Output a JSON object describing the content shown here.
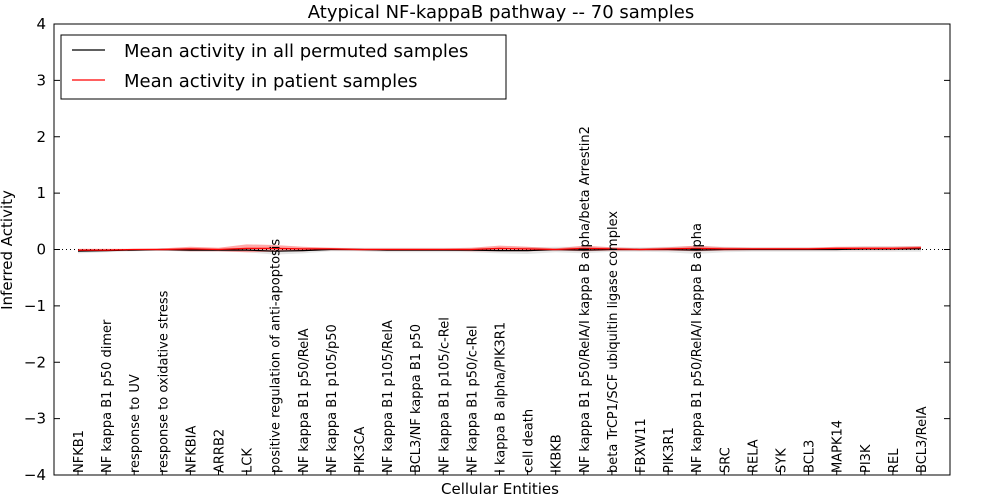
{
  "chart_data": {
    "type": "line",
    "title": "Atypical NF-kappaB pathway -- 70 samples",
    "xlabel": "Cellular Entities",
    "ylabel": "Inferred Activity",
    "ylim": [
      -4,
      4
    ],
    "yticks": [
      -4,
      -3,
      -2,
      -1,
      0,
      1,
      2,
      3,
      4
    ],
    "ytick_labels": [
      "−4",
      "−3",
      "−2",
      "−1",
      "0",
      "1",
      "2",
      "3",
      "4"
    ],
    "grid": false,
    "legend_position": "top-left",
    "categories": [
      "NFKB1",
      "NF kappa B1 p50 dimer",
      "response to UV",
      "response to oxidative stress",
      "NFKBIA",
      "ARRB2",
      "LCK",
      "positive regulation of anti-apoptosis",
      "NF kappa B1 p50/RelA",
      "NF kappa B1 p105/p50",
      "PIK3CA",
      "NF kappa B1 p105/RelA",
      "BCL3/NF kappa B1 p50",
      "NF kappa B1 p105/c-Rel",
      "NF kappa B1 p50/c-Rel",
      "I kappa B alpha/PIK3R1",
      "cell death",
      "IKBKB",
      "NF kappa B1 p50/RelA/I kappa B alpha/beta Arrestin2",
      "beta TrCP1/SCF ubiquitin ligase complex",
      "FBXW11",
      "PIK3R1",
      "NF kappa B1 p50/RelA/I kappa B alpha",
      "SRC",
      "RELA",
      "SYK",
      "BCL3",
      "MAPK14",
      "PI3K",
      "REL",
      "BCL3/RelA"
    ],
    "series": [
      {
        "name": "Mean activity in all permuted samples",
        "color": "#000000",
        "values": [
          -0.03,
          -0.02,
          -0.01,
          0.0,
          -0.01,
          -0.01,
          -0.01,
          -0.03,
          -0.02,
          0.0,
          0.0,
          -0.01,
          -0.01,
          -0.01,
          -0.01,
          -0.02,
          -0.02,
          0.0,
          -0.01,
          0.0,
          0.0,
          0.0,
          -0.01,
          0.0,
          0.0,
          0.0,
          0.0,
          0.0,
          0.01,
          0.01,
          0.01
        ],
        "band": [
          0.04,
          0.03,
          0.02,
          0.02,
          0.03,
          0.03,
          0.04,
          0.06,
          0.05,
          0.03,
          0.03,
          0.04,
          0.04,
          0.04,
          0.04,
          0.05,
          0.06,
          0.05,
          0.06,
          0.04,
          0.04,
          0.05,
          0.07,
          0.05,
          0.04,
          0.04,
          0.04,
          0.04,
          0.05,
          0.05,
          0.05
        ]
      },
      {
        "name": "Mean activity in patient samples",
        "color": "#ff0000",
        "values": [
          -0.01,
          -0.01,
          0.0,
          0.0,
          0.01,
          0.0,
          0.02,
          0.02,
          0.01,
          0.01,
          0.0,
          0.0,
          0.0,
          0.0,
          0.0,
          0.02,
          0.01,
          0.0,
          0.02,
          0.01,
          0.0,
          0.01,
          0.02,
          0.01,
          0.01,
          0.01,
          0.01,
          0.02,
          0.02,
          0.02,
          0.03
        ],
        "band": [
          0.02,
          0.02,
          0.01,
          0.02,
          0.04,
          0.03,
          0.07,
          0.06,
          0.04,
          0.02,
          0.02,
          0.02,
          0.02,
          0.02,
          0.03,
          0.05,
          0.04,
          0.02,
          0.05,
          0.03,
          0.02,
          0.03,
          0.05,
          0.03,
          0.02,
          0.02,
          0.02,
          0.03,
          0.03,
          0.03,
          0.03
        ]
      }
    ],
    "baseline": {
      "value": 0,
      "style": "dotted"
    }
  }
}
